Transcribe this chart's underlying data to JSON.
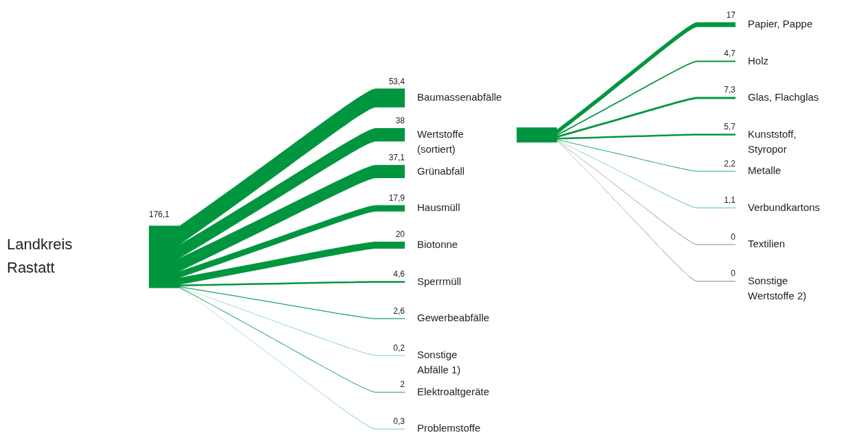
{
  "chart_data": [
    {
      "type": "other",
      "annotations": [
        "Landkreis Rastatt"
      ],
      "totals": [
        "176,1"
      ],
      "value_labels": [
        "53,4",
        "38",
        "37,1",
        "17,9",
        "20",
        "4,6",
        "2,6",
        "0,2",
        "2",
        "0,3"
      ],
      "categories": [
        "Baumassenabfälle",
        "Wertstoffe\n(sortiert)",
        "Grünabfall",
        "Hausmüll",
        "Biotonne",
        "Sperrmüll",
        "Gewerbeabfälle",
        "Sonstige\nAbfälle 1)",
        "Elektroaltgeräte",
        "Problemstoffe"
      ],
      "values": [
        53.4,
        38,
        37.1,
        17.9,
        20,
        4.6,
        2.6,
        0.2,
        2,
        0.3
      ],
      "colors": [
        "#00963f",
        "#00963f",
        "#00963f",
        "#00963f",
        "#00963f",
        "#00963f",
        "#1aa35e",
        "#7ccfa3",
        "#1aa35e",
        "#7ccfa3"
      ]
    },
    {
      "type": "other",
      "value_labels": [
        "17",
        "4,7",
        "7,3",
        "5,7",
        "2,2",
        "1,1",
        "0",
        "0"
      ],
      "categories": [
        "Papier, Pappe",
        "Holz",
        "Glas, Flachglas",
        "Kunststoff,\nStyropor",
        "Metalle",
        "Verbundkartons",
        "Textilien",
        "Sonstige\nWertstoffe 2)"
      ],
      "values": [
        17,
        4.7,
        7.3,
        5.7,
        2.2,
        1.1,
        0,
        0
      ],
      "colors": [
        "#00963f",
        "#00963f",
        "#00963f",
        "#00963f",
        "#2aae6c",
        "#5cc496",
        "#8c8c8c",
        "#8c8c8c"
      ]
    }
  ]
}
